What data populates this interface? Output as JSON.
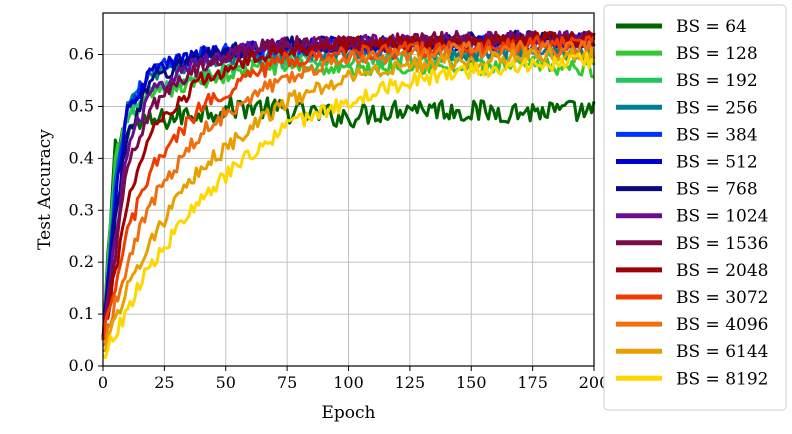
{
  "chart_data": {
    "type": "line",
    "xlabel": "Epoch",
    "ylabel": "Test Accuracy",
    "xlim": [
      0,
      200
    ],
    "ylim": [
      0.0,
      0.68
    ],
    "xticks": [
      "0",
      "25",
      "50",
      "75",
      "100",
      "125",
      "150",
      "175",
      "200"
    ],
    "yticks": [
      "0.0",
      "0.1",
      "0.2",
      "0.3",
      "0.4",
      "0.5",
      "0.6"
    ],
    "grid": true,
    "legend_position": "outside-right",
    "series": [
      {
        "name": "BS = 64",
        "color": "#006400",
        "values": [
          [
            0,
            0.05
          ],
          [
            5,
            0.42
          ],
          [
            10,
            0.46
          ],
          [
            20,
            0.47
          ],
          [
            40,
            0.49
          ],
          [
            60,
            0.5
          ],
          [
            75,
            0.49
          ],
          [
            100,
            0.48
          ],
          [
            125,
            0.5
          ],
          [
            150,
            0.49
          ],
          [
            175,
            0.49
          ],
          [
            200,
            0.49
          ]
        ]
      },
      {
        "name": "BS = 128",
        "color": "#32c832",
        "values": [
          [
            0,
            0.05
          ],
          [
            5,
            0.4
          ],
          [
            10,
            0.48
          ],
          [
            20,
            0.52
          ],
          [
            40,
            0.55
          ],
          [
            60,
            0.57
          ],
          [
            75,
            0.58
          ],
          [
            100,
            0.57
          ],
          [
            125,
            0.58
          ],
          [
            150,
            0.57
          ],
          [
            175,
            0.58
          ],
          [
            200,
            0.57
          ]
        ]
      },
      {
        "name": "BS = 192",
        "color": "#22c55e",
        "values": [
          [
            0,
            0.05
          ],
          [
            5,
            0.38
          ],
          [
            10,
            0.48
          ],
          [
            20,
            0.53
          ],
          [
            40,
            0.56
          ],
          [
            60,
            0.58
          ],
          [
            75,
            0.59
          ],
          [
            100,
            0.59
          ],
          [
            125,
            0.59
          ],
          [
            150,
            0.59
          ],
          [
            175,
            0.6
          ],
          [
            200,
            0.59
          ]
        ]
      },
      {
        "name": "BS = 256",
        "color": "#00808c",
        "values": [
          [
            0,
            0.05
          ],
          [
            5,
            0.35
          ],
          [
            10,
            0.5
          ],
          [
            20,
            0.56
          ],
          [
            40,
            0.59
          ],
          [
            60,
            0.6
          ],
          [
            75,
            0.6
          ],
          [
            100,
            0.6
          ],
          [
            125,
            0.61
          ],
          [
            150,
            0.6
          ],
          [
            175,
            0.61
          ],
          [
            200,
            0.6
          ]
        ]
      },
      {
        "name": "BS = 384",
        "color": "#0033ff",
        "values": [
          [
            0,
            0.05
          ],
          [
            5,
            0.34
          ],
          [
            10,
            0.5
          ],
          [
            20,
            0.57
          ],
          [
            40,
            0.6
          ],
          [
            60,
            0.61
          ],
          [
            75,
            0.61
          ],
          [
            100,
            0.62
          ],
          [
            125,
            0.62
          ],
          [
            150,
            0.62
          ],
          [
            175,
            0.62
          ],
          [
            200,
            0.62
          ]
        ]
      },
      {
        "name": "BS = 512",
        "color": "#0000d0",
        "values": [
          [
            0,
            0.05
          ],
          [
            5,
            0.32
          ],
          [
            10,
            0.49
          ],
          [
            20,
            0.57
          ],
          [
            40,
            0.6
          ],
          [
            60,
            0.61
          ],
          [
            75,
            0.62
          ],
          [
            100,
            0.62
          ],
          [
            125,
            0.62
          ],
          [
            150,
            0.62
          ],
          [
            175,
            0.63
          ],
          [
            200,
            0.62
          ]
        ]
      },
      {
        "name": "BS = 768",
        "color": "#0a0a80",
        "values": [
          [
            0,
            0.05
          ],
          [
            5,
            0.28
          ],
          [
            10,
            0.45
          ],
          [
            20,
            0.55
          ],
          [
            40,
            0.6
          ],
          [
            60,
            0.61
          ],
          [
            75,
            0.62
          ],
          [
            100,
            0.62
          ],
          [
            125,
            0.62
          ],
          [
            150,
            0.63
          ],
          [
            175,
            0.63
          ],
          [
            200,
            0.63
          ]
        ]
      },
      {
        "name": "BS = 1024",
        "color": "#6a0d91",
        "values": [
          [
            0,
            0.05
          ],
          [
            5,
            0.25
          ],
          [
            10,
            0.42
          ],
          [
            20,
            0.53
          ],
          [
            40,
            0.59
          ],
          [
            60,
            0.61
          ],
          [
            75,
            0.62
          ],
          [
            100,
            0.62
          ],
          [
            125,
            0.63
          ],
          [
            150,
            0.63
          ],
          [
            175,
            0.63
          ],
          [
            200,
            0.63
          ]
        ]
      },
      {
        "name": "BS = 1536",
        "color": "#7a0a4a",
        "values": [
          [
            0,
            0.05
          ],
          [
            5,
            0.22
          ],
          [
            10,
            0.38
          ],
          [
            20,
            0.5
          ],
          [
            40,
            0.58
          ],
          [
            60,
            0.61
          ],
          [
            75,
            0.62
          ],
          [
            100,
            0.62
          ],
          [
            125,
            0.63
          ],
          [
            150,
            0.63
          ],
          [
            175,
            0.63
          ],
          [
            200,
            0.63
          ]
        ]
      },
      {
        "name": "BS = 2048",
        "color": "#a00000",
        "values": [
          [
            0,
            0.05
          ],
          [
            5,
            0.18
          ],
          [
            10,
            0.32
          ],
          [
            20,
            0.45
          ],
          [
            40,
            0.55
          ],
          [
            60,
            0.59
          ],
          [
            75,
            0.61
          ],
          [
            100,
            0.62
          ],
          [
            125,
            0.62
          ],
          [
            150,
            0.62
          ],
          [
            175,
            0.63
          ],
          [
            200,
            0.63
          ]
        ]
      },
      {
        "name": "BS = 3072",
        "color": "#f03c00",
        "values": [
          [
            0,
            0.05
          ],
          [
            5,
            0.15
          ],
          [
            10,
            0.26
          ],
          [
            20,
            0.38
          ],
          [
            40,
            0.5
          ],
          [
            60,
            0.56
          ],
          [
            75,
            0.59
          ],
          [
            100,
            0.6
          ],
          [
            125,
            0.61
          ],
          [
            150,
            0.61
          ],
          [
            175,
            0.62
          ],
          [
            200,
            0.62
          ]
        ]
      },
      {
        "name": "BS = 4096",
        "color": "#f07010",
        "values": [
          [
            0,
            0.04
          ],
          [
            5,
            0.12
          ],
          [
            10,
            0.2
          ],
          [
            20,
            0.32
          ],
          [
            40,
            0.45
          ],
          [
            60,
            0.52
          ],
          [
            75,
            0.56
          ],
          [
            100,
            0.59
          ],
          [
            125,
            0.6
          ],
          [
            150,
            0.61
          ],
          [
            175,
            0.61
          ],
          [
            200,
            0.61
          ]
        ]
      },
      {
        "name": "BS = 6144",
        "color": "#e8a000",
        "values": [
          [
            0,
            0.03
          ],
          [
            5,
            0.09
          ],
          [
            10,
            0.15
          ],
          [
            20,
            0.25
          ],
          [
            40,
            0.38
          ],
          [
            60,
            0.46
          ],
          [
            75,
            0.51
          ],
          [
            100,
            0.56
          ],
          [
            125,
            0.58
          ],
          [
            150,
            0.59
          ],
          [
            175,
            0.6
          ],
          [
            200,
            0.6
          ]
        ]
      },
      {
        "name": "BS = 8192",
        "color": "#ffd700",
        "values": [
          [
            0,
            0.02
          ],
          [
            5,
            0.06
          ],
          [
            10,
            0.11
          ],
          [
            20,
            0.2
          ],
          [
            40,
            0.32
          ],
          [
            60,
            0.41
          ],
          [
            75,
            0.46
          ],
          [
            100,
            0.51
          ],
          [
            125,
            0.55
          ],
          [
            150,
            0.57
          ],
          [
            175,
            0.58
          ],
          [
            200,
            0.59
          ]
        ]
      }
    ]
  }
}
